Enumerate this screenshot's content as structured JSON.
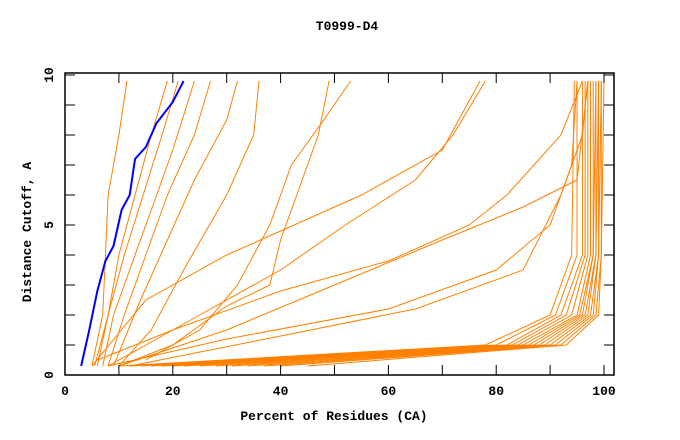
{
  "chart_data": {
    "type": "line",
    "title": "T0999-D4",
    "xlabel": "Percent of Residues (CA)",
    "ylabel": "Distance Cutoff, A",
    "xlim": [
      0,
      100
    ],
    "ylim": [
      0,
      10
    ],
    "x_ticks": [
      0,
      20,
      40,
      60,
      80,
      100
    ],
    "y_ticks": [
      0,
      5,
      10
    ],
    "x_minor_step": 10,
    "y_minor_step": 1,
    "grid": false,
    "colors": {
      "highlight": "#0000ff",
      "other": "#ff8000"
    },
    "highlight_series": {
      "name": "highlighted",
      "points": [
        [
          3,
          0.3
        ],
        [
          4.5,
          1.5
        ],
        [
          6,
          2.8
        ],
        [
          7.5,
          3.8
        ],
        [
          9,
          4.3
        ],
        [
          10.5,
          5.5
        ],
        [
          12,
          6.0
        ],
        [
          13,
          7.2
        ],
        [
          15,
          7.6
        ],
        [
          17,
          8.4
        ],
        [
          20,
          9.1
        ],
        [
          22,
          9.8
        ]
      ]
    },
    "series": [
      {
        "points": [
          [
            5,
            0.3
          ],
          [
            7,
            2
          ],
          [
            7.5,
            4
          ],
          [
            8,
            6
          ],
          [
            10,
            8
          ],
          [
            11.5,
            9.8
          ]
        ]
      },
      {
        "points": [
          [
            6,
            0.3
          ],
          [
            8,
            2
          ],
          [
            10,
            4
          ],
          [
            13,
            6
          ],
          [
            16,
            8
          ],
          [
            19,
            9.8
          ]
        ]
      },
      {
        "points": [
          [
            5.5,
            0.3
          ],
          [
            8,
            2
          ],
          [
            11,
            4
          ],
          [
            14.5,
            6
          ],
          [
            18,
            8
          ],
          [
            21,
            9.8
          ]
        ]
      },
      {
        "points": [
          [
            7,
            0.3
          ],
          [
            9,
            2
          ],
          [
            12,
            3.5
          ],
          [
            16,
            5.5
          ],
          [
            20,
            7.5
          ],
          [
            24,
            9.8
          ]
        ]
      },
      {
        "points": [
          [
            8,
            0.3
          ],
          [
            11,
            2
          ],
          [
            15,
            4
          ],
          [
            19,
            6
          ],
          [
            24,
            8
          ],
          [
            27,
            9.8
          ]
        ]
      },
      {
        "points": [
          [
            9,
            0.3
          ],
          [
            14,
            2.5
          ],
          [
            19,
            4.5
          ],
          [
            24,
            6.5
          ],
          [
            30,
            8.5
          ],
          [
            32,
            9.8
          ]
        ]
      },
      {
        "points": [
          [
            10,
            0.3
          ],
          [
            16,
            1.5
          ],
          [
            22,
            3.5
          ],
          [
            30,
            6
          ],
          [
            35,
            8
          ],
          [
            36,
            9.8
          ]
        ]
      },
      {
        "points": [
          [
            8,
            0.3
          ],
          [
            15,
            1
          ],
          [
            25,
            2
          ],
          [
            40,
            3.5
          ],
          [
            52,
            5
          ],
          [
            65,
            6.5
          ],
          [
            72,
            8
          ],
          [
            78,
            9.8
          ]
        ]
      },
      {
        "points": [
          [
            10,
            0.3
          ],
          [
            20,
            1
          ],
          [
            30,
            2.3
          ],
          [
            38,
            3
          ],
          [
            40,
            4.5
          ],
          [
            43,
            6
          ],
          [
            47,
            8
          ],
          [
            49,
            9.8
          ]
        ]
      },
      {
        "points": [
          [
            15,
            0.5
          ],
          [
            25,
            1.5
          ],
          [
            32,
            3
          ],
          [
            38,
            5
          ],
          [
            42,
            7
          ],
          [
            48,
            8.5
          ],
          [
            53,
            9.8
          ]
        ]
      },
      {
        "points": [
          [
            5,
            0.3
          ],
          [
            15,
            2.5
          ],
          [
            30,
            4
          ],
          [
            45,
            5.2
          ],
          [
            55,
            6
          ],
          [
            70,
            7.5
          ],
          [
            77,
            9.8
          ]
        ]
      },
      {
        "points": [
          [
            6,
            0.5
          ],
          [
            20,
            1.5
          ],
          [
            40,
            2.8
          ],
          [
            60,
            3.8
          ],
          [
            75,
            5
          ],
          [
            82,
            6
          ],
          [
            92,
            8
          ],
          [
            96,
            9.8
          ]
        ]
      },
      {
        "points": [
          [
            10,
            0.3
          ],
          [
            30,
            1.5
          ],
          [
            50,
            3
          ],
          [
            70,
            4.5
          ],
          [
            85,
            5.6
          ],
          [
            95,
            6.5
          ],
          [
            97,
            9.8
          ]
        ]
      },
      {
        "points": [
          [
            8,
            0.3
          ],
          [
            30,
            1.2
          ],
          [
            60,
            2.2
          ],
          [
            80,
            3.5
          ],
          [
            90,
            5
          ],
          [
            94,
            7
          ],
          [
            95,
            9.8
          ]
        ]
      },
      {
        "points": [
          [
            12,
            0.3
          ],
          [
            40,
            1.3
          ],
          [
            65,
            2.2
          ],
          [
            85,
            3.5
          ],
          [
            92,
            6
          ],
          [
            96,
            8
          ],
          [
            97,
            9.8
          ]
        ]
      },
      {
        "points": [
          [
            10,
            0.3
          ],
          [
            78,
            1
          ],
          [
            90,
            2
          ],
          [
            94,
            4
          ],
          [
            94.5,
            9.8
          ]
        ]
      },
      {
        "points": [
          [
            12,
            0.3
          ],
          [
            80,
            1
          ],
          [
            91,
            2
          ],
          [
            95,
            4
          ],
          [
            95,
            9.8
          ]
        ]
      },
      {
        "points": [
          [
            14,
            0.3
          ],
          [
            82,
            1
          ],
          [
            92,
            2
          ],
          [
            96,
            4
          ],
          [
            96,
            9.8
          ]
        ]
      },
      {
        "points": [
          [
            16,
            0.3
          ],
          [
            83,
            1
          ],
          [
            93,
            2
          ],
          [
            96.5,
            4
          ],
          [
            96.5,
            9.8
          ]
        ]
      },
      {
        "points": [
          [
            18,
            0.3
          ],
          [
            84,
            1
          ],
          [
            94,
            2
          ],
          [
            97,
            4
          ],
          [
            97,
            9.8
          ]
        ]
      },
      {
        "points": [
          [
            20,
            0.3
          ],
          [
            85,
            1
          ],
          [
            95,
            2
          ],
          [
            97.5,
            4
          ],
          [
            97.5,
            9.8
          ]
        ]
      },
      {
        "points": [
          [
            22,
            0.3
          ],
          [
            86,
            1
          ],
          [
            95.5,
            2
          ],
          [
            98,
            4
          ],
          [
            98,
            9.8
          ]
        ]
      },
      {
        "points": [
          [
            25,
            0.3
          ],
          [
            87,
            1
          ],
          [
            96,
            2
          ],
          [
            98,
            4
          ],
          [
            98.5,
            9.8
          ]
        ]
      },
      {
        "points": [
          [
            28,
            0.3
          ],
          [
            88,
            1
          ],
          [
            96.5,
            2
          ],
          [
            98.5,
            4
          ],
          [
            98.5,
            9.8
          ]
        ]
      },
      {
        "points": [
          [
            31,
            0.3
          ],
          [
            89,
            1
          ],
          [
            97,
            2
          ],
          [
            98.5,
            4
          ],
          [
            99,
            9.8
          ]
        ]
      },
      {
        "points": [
          [
            34,
            0.3
          ],
          [
            90,
            1
          ],
          [
            97.5,
            2
          ],
          [
            99,
            4
          ],
          [
            99,
            9.8
          ]
        ]
      },
      {
        "points": [
          [
            37,
            0.3
          ],
          [
            91,
            1
          ],
          [
            98,
            2
          ],
          [
            99,
            4
          ],
          [
            99.5,
            9.8
          ]
        ]
      },
      {
        "points": [
          [
            40,
            0.3
          ],
          [
            92,
            1
          ],
          [
            98.5,
            2
          ],
          [
            99.5,
            4
          ],
          [
            99.5,
            9.8
          ]
        ]
      },
      {
        "points": [
          [
            45,
            0.3
          ],
          [
            93,
            1
          ],
          [
            99,
            2
          ],
          [
            99.5,
            4
          ],
          [
            100,
            9.8
          ]
        ]
      }
    ]
  }
}
